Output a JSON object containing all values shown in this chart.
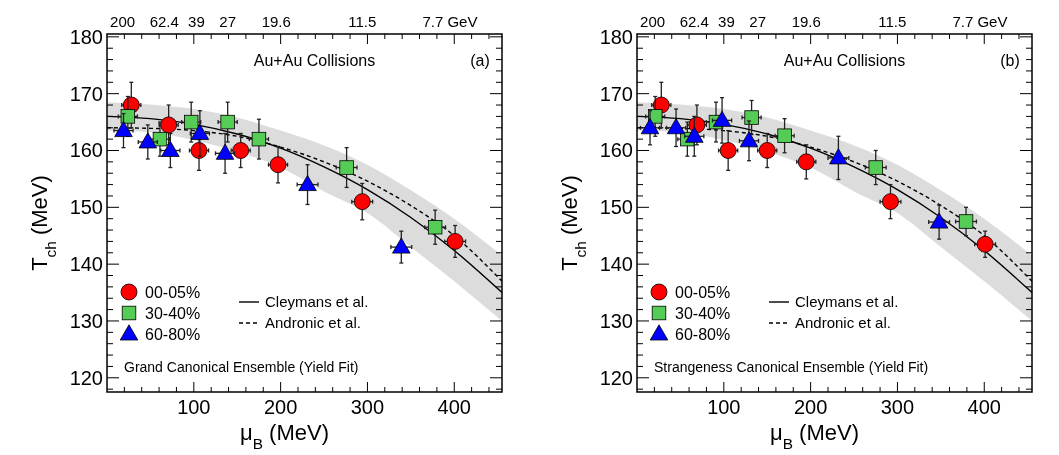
{
  "chart_data": [
    {
      "type": "scatter",
      "xlabel": "μ$_{B}$ (MeV)",
      "ylabel": "T$_{ch}$ (MeV)",
      "annotations": [
        "Au+Au Collisions",
        "(a)",
        "Grand Canonical Ensemble (Yield Fit)",
        "200",
        "62.4",
        "39",
        "27",
        "19.6",
        "11.5",
        "7.7 GeV"
      ],
      "legend": "bottom left",
      "xlim": [
        0,
        455
      ],
      "ylim": [
        117.5,
        180.5
      ],
      "xticks": [
        {
          "value": 20,
          "label": null
        },
        {
          "value": 40,
          "label": null
        },
        {
          "value": 60,
          "label": null
        },
        {
          "value": 80,
          "label": null
        },
        100,
        {
          "value": 120,
          "label": null
        },
        {
          "value": 140,
          "label": null
        },
        {
          "value": 160,
          "label": null
        },
        {
          "value": 180,
          "label": null
        },
        200,
        {
          "value": 220,
          "label": null
        },
        {
          "value": 240,
          "label": null
        },
        {
          "value": 260,
          "label": null
        },
        {
          "value": 280,
          "label": null
        },
        300,
        {
          "value": 320,
          "label": null
        },
        {
          "value": 340,
          "label": null
        },
        {
          "value": 360,
          "label": null
        },
        {
          "value": 380,
          "label": null
        },
        400,
        {
          "value": 420,
          "label": null
        },
        {
          "value": 440,
          "label": null
        }
      ],
      "yticks": [
        {
          "value": 118,
          "label": null
        },
        120,
        {
          "value": 122,
          "label": null
        },
        {
          "value": 124,
          "label": null
        },
        {
          "value": 126,
          "label": null
        },
        {
          "value": 128,
          "label": null
        },
        130,
        {
          "value": 132,
          "label": null
        },
        {
          "value": 134,
          "label": null
        },
        {
          "value": 136,
          "label": null
        },
        {
          "value": 138,
          "label": null
        },
        140,
        {
          "value": 142,
          "label": null
        },
        {
          "value": 144,
          "label": null
        },
        {
          "value": 146,
          "label": null
        },
        {
          "value": 148,
          "label": null
        },
        150,
        {
          "value": 152,
          "label": null
        },
        {
          "value": 154,
          "label": null
        },
        {
          "value": 156,
          "label": null
        },
        {
          "value": 158,
          "label": null
        },
        160,
        {
          "value": 162,
          "label": null
        },
        {
          "value": 164,
          "label": null
        },
        {
          "value": 166,
          "label": null
        },
        {
          "value": 168,
          "label": null
        },
        170,
        {
          "value": 172,
          "label": null
        },
        {
          "value": 174,
          "label": null
        },
        {
          "value": 176,
          "label": null
        },
        {
          "value": 178,
          "label": null
        },
        180
      ],
      "series": [
        {
          "name": "00-05%",
          "marker": "circle",
          "color": "#ff0000",
          "x": [
            28,
            71,
            106,
            154,
            197,
            294,
            401
          ],
          "values": [
            168,
            164.5,
            160,
            160,
            157.5,
            151,
            144
          ],
          "errors": [
            4,
            3.5,
            3.5,
            3,
            3.2,
            3.2,
            2.8
          ],
          "xerrors": [
            11,
            11,
            11,
            11,
            11,
            12,
            12
          ]
        },
        {
          "name": "30-40%",
          "marker": "square",
          "color": "#55cc55",
          "x": [
            24,
            61,
            97,
            139,
            175,
            276,
            378
          ],
          "values": [
            166,
            162,
            165,
            165,
            162,
            157,
            146.5
          ],
          "errors": [
            3.5,
            3,
            3.5,
            3.5,
            3.5,
            3.5,
            3
          ],
          "xerrors": [
            11,
            11,
            11,
            11,
            11,
            12,
            12
          ]
        },
        {
          "name": "60-80%",
          "marker": "triangle",
          "color": "#0000ff",
          "x": [
            19,
            47,
            73,
            107,
            136,
            231,
            339
          ],
          "values": [
            163.5,
            161.5,
            160,
            163,
            159.5,
            154,
            143
          ],
          "errors": [
            3,
            3,
            3,
            4,
            3.5,
            3.5,
            2.8
          ],
          "xerrors": [
            11,
            11,
            11,
            11,
            11,
            12,
            12
          ]
        },
        {
          "name": "Cleymans et al.",
          "type": "line",
          "line_style": "solid",
          "color": "#000000",
          "x": [
            0,
            50,
            100,
            150,
            200,
            250,
            300,
            350,
            400,
            455
          ],
          "values": [
            166,
            165.6,
            164.6,
            162.9,
            160.4,
            157.1,
            153.1,
            148.2,
            142.4,
            135
          ],
          "lower": [
            163.5,
            163.2,
            161.8,
            159.8,
            157,
            152.8,
            149,
            143,
            137,
            130
          ],
          "upper": [
            168.5,
            168.1,
            167.3,
            165.8,
            163.5,
            160.9,
            157.5,
            153,
            148,
            141.5
          ]
        },
        {
          "name": "Andronic et al.",
          "type": "line",
          "line_style": "dashed",
          "color": "#000000",
          "x": [
            0,
            50,
            100,
            150,
            200,
            250,
            300,
            350,
            400,
            455
          ],
          "values": [
            164,
            163.9,
            163.5,
            162.5,
            160.6,
            158,
            154.6,
            150.3,
            145,
            137
          ]
        }
      ]
    },
    {
      "type": "scatter",
      "xlabel": "μ$_{B}$ (MeV)",
      "ylabel": "T$_{ch}$ (MeV)",
      "annotations": [
        "Au+Au Collisions",
        "(b)",
        "Strangeness Canonical Ensemble (Yield Fit)",
        "200",
        "62.4",
        "39",
        "27",
        "19.6",
        "11.5",
        "7.7 GeV"
      ],
      "legend": "bottom left",
      "xlim": [
        0,
        455
      ],
      "ylim": [
        117.5,
        180.5
      ],
      "xticks": [
        {
          "value": 20,
          "label": null
        },
        {
          "value": 40,
          "label": null
        },
        {
          "value": 60,
          "label": null
        },
        {
          "value": 80,
          "label": null
        },
        100,
        {
          "value": 120,
          "label": null
        },
        {
          "value": 140,
          "label": null
        },
        {
          "value": 160,
          "label": null
        },
        {
          "value": 180,
          "label": null
        },
        200,
        {
          "value": 220,
          "label": null
        },
        {
          "value": 240,
          "label": null
        },
        {
          "value": 260,
          "label": null
        },
        {
          "value": 280,
          "label": null
        },
        300,
        {
          "value": 320,
          "label": null
        },
        {
          "value": 340,
          "label": null
        },
        {
          "value": 360,
          "label": null
        },
        {
          "value": 380,
          "label": null
        },
        400,
        {
          "value": 420,
          "label": null
        },
        {
          "value": 440,
          "label": null
        }
      ],
      "yticks": [
        {
          "value": 118,
          "label": null
        },
        120,
        {
          "value": 122,
          "label": null
        },
        {
          "value": 124,
          "label": null
        },
        {
          "value": 126,
          "label": null
        },
        {
          "value": 128,
          "label": null
        },
        130,
        {
          "value": 132,
          "label": null
        },
        {
          "value": 134,
          "label": null
        },
        {
          "value": 136,
          "label": null
        },
        {
          "value": 138,
          "label": null
        },
        140,
        {
          "value": 142,
          "label": null
        },
        {
          "value": 144,
          "label": null
        },
        {
          "value": 146,
          "label": null
        },
        {
          "value": 148,
          "label": null
        },
        150,
        {
          "value": 152,
          "label": null
        },
        {
          "value": 154,
          "label": null
        },
        {
          "value": 156,
          "label": null
        },
        {
          "value": 158,
          "label": null
        },
        160,
        {
          "value": 162,
          "label": null
        },
        {
          "value": 164,
          "label": null
        },
        {
          "value": 166,
          "label": null
        },
        {
          "value": 168,
          "label": null
        },
        170,
        {
          "value": 172,
          "label": null
        },
        {
          "value": 174,
          "label": null
        },
        {
          "value": 176,
          "label": null
        },
        {
          "value": 178,
          "label": null
        },
        180
      ],
      "series": [
        {
          "name": "00-05%",
          "marker": "circle",
          "color": "#ff0000",
          "x": [
            28,
            69,
            105,
            150,
            195,
            292,
            401
          ],
          "values": [
            168,
            164.5,
            160,
            160,
            158,
            151,
            143.5
          ],
          "errors": [
            4,
            3.5,
            3.5,
            3,
            3,
            3,
            2.3
          ],
          "xerrors": [
            11,
            11,
            11,
            11,
            11,
            12,
            12
          ]
        },
        {
          "name": "30-40%",
          "marker": "square",
          "color": "#55cc55",
          "x": [
            21,
            58,
            91,
            132,
            170,
            275,
            379
          ],
          "values": [
            166,
            162,
            165,
            165.8,
            162.6,
            157,
            147.5
          ],
          "errors": [
            3.5,
            3,
            3.5,
            3,
            3,
            3,
            2.5
          ],
          "xerrors": [
            11,
            11,
            11,
            11,
            11,
            12,
            12
          ]
        },
        {
          "name": "60-80%",
          "marker": "triangle",
          "color": "#0000ff",
          "x": [
            15,
            45,
            66,
            98,
            129,
            232,
            348
          ],
          "values": [
            164,
            164,
            162.5,
            165.3,
            161.7,
            158.7,
            147.4
          ],
          "errors": [
            3,
            3.3,
            3.5,
            4,
            3.5,
            3.8,
            3
          ],
          "xerrors": [
            11,
            11,
            11,
            11,
            11,
            12,
            12
          ]
        },
        {
          "name": "Cleymans et al.",
          "type": "line",
          "line_style": "solid",
          "color": "#000000",
          "x": [
            0,
            50,
            100,
            150,
            200,
            250,
            300,
            350,
            400,
            455
          ],
          "values": [
            166,
            165.6,
            164.6,
            162.9,
            160.4,
            157.1,
            153.1,
            148.2,
            142.4,
            135
          ],
          "lower": [
            163.5,
            163.2,
            161.8,
            159.8,
            157,
            152.8,
            149,
            143,
            137,
            130
          ],
          "upper": [
            168.5,
            168.1,
            167.3,
            165.8,
            163.5,
            160.9,
            157.5,
            153,
            148,
            141.5
          ]
        },
        {
          "name": "Andronic et al.",
          "type": "line",
          "line_style": "dashed",
          "color": "#000000",
          "x": [
            0,
            50,
            100,
            150,
            200,
            250,
            300,
            350,
            400,
            455
          ],
          "values": [
            164,
            163.9,
            163.5,
            162.5,
            160.6,
            158,
            154.6,
            150.3,
            145,
            137
          ]
        }
      ]
    }
  ]
}
